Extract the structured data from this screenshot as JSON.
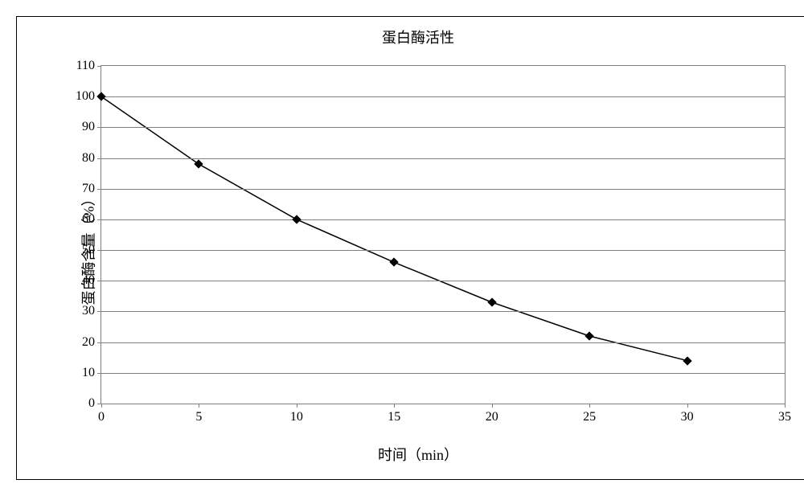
{
  "chart": {
    "type": "line",
    "title": "蛋白酶活性",
    "title_fontsize": 18,
    "xlabel": "时间（min）",
    "ylabel": "蛋白酶含量（%）",
    "label_fontsize": 18,
    "tick_fontsize": 16,
    "x_values": [
      0,
      5,
      10,
      15,
      20,
      25,
      30
    ],
    "y_values": [
      100,
      78,
      60,
      46,
      33,
      22,
      14
    ],
    "xlim": [
      0,
      35
    ],
    "ylim": [
      0,
      110
    ],
    "x_ticks": [
      0,
      5,
      10,
      15,
      20,
      25,
      30,
      35
    ],
    "y_ticks": [
      0,
      10,
      20,
      30,
      40,
      50,
      60,
      70,
      80,
      90,
      100,
      110
    ],
    "line_color": "#000000",
    "line_width": 1.5,
    "marker": "diamond",
    "marker_color": "#000000",
    "marker_size": 8,
    "background_color": "#ffffff",
    "grid": true,
    "grid_color": "#808080",
    "border_color": "#000000",
    "axis_color": "#808080"
  }
}
